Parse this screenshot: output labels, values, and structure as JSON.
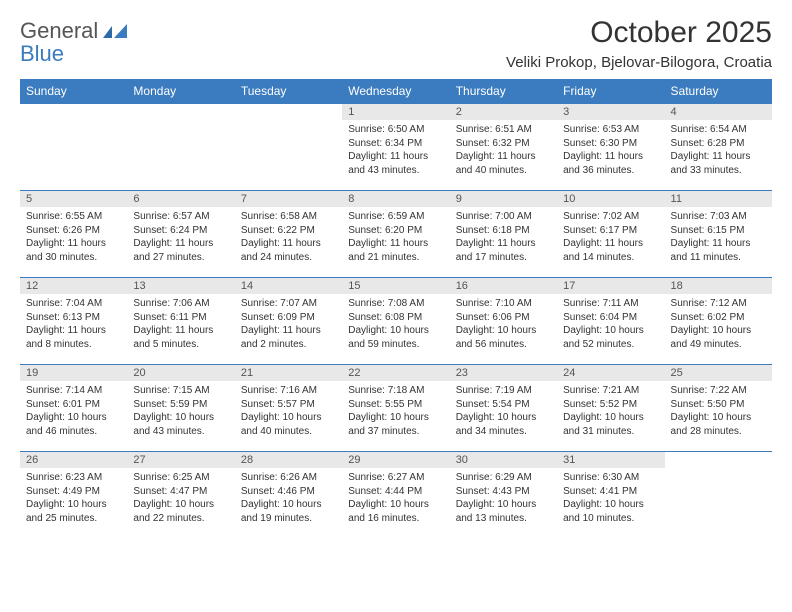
{
  "brand": {
    "part1": "General",
    "part2": "Blue"
  },
  "title": "October 2025",
  "location": "Veliki Prokop, Bjelovar-Bilogora, Croatia",
  "colors": {
    "header_bg": "#3b7bbf",
    "header_fg": "#ffffff",
    "daynum_bg": "#e8e8e8",
    "text": "#333333",
    "rule": "#3b7bbf"
  },
  "weekdays": [
    "Sunday",
    "Monday",
    "Tuesday",
    "Wednesday",
    "Thursday",
    "Friday",
    "Saturday"
  ],
  "weeks": [
    [
      null,
      null,
      null,
      {
        "d": "1",
        "sr": "6:50 AM",
        "ss": "6:34 PM",
        "dl": "11 hours and 43 minutes."
      },
      {
        "d": "2",
        "sr": "6:51 AM",
        "ss": "6:32 PM",
        "dl": "11 hours and 40 minutes."
      },
      {
        "d": "3",
        "sr": "6:53 AM",
        "ss": "6:30 PM",
        "dl": "11 hours and 36 minutes."
      },
      {
        "d": "4",
        "sr": "6:54 AM",
        "ss": "6:28 PM",
        "dl": "11 hours and 33 minutes."
      }
    ],
    [
      {
        "d": "5",
        "sr": "6:55 AM",
        "ss": "6:26 PM",
        "dl": "11 hours and 30 minutes."
      },
      {
        "d": "6",
        "sr": "6:57 AM",
        "ss": "6:24 PM",
        "dl": "11 hours and 27 minutes."
      },
      {
        "d": "7",
        "sr": "6:58 AM",
        "ss": "6:22 PM",
        "dl": "11 hours and 24 minutes."
      },
      {
        "d": "8",
        "sr": "6:59 AM",
        "ss": "6:20 PM",
        "dl": "11 hours and 21 minutes."
      },
      {
        "d": "9",
        "sr": "7:00 AM",
        "ss": "6:18 PM",
        "dl": "11 hours and 17 minutes."
      },
      {
        "d": "10",
        "sr": "7:02 AM",
        "ss": "6:17 PM",
        "dl": "11 hours and 14 minutes."
      },
      {
        "d": "11",
        "sr": "7:03 AM",
        "ss": "6:15 PM",
        "dl": "11 hours and 11 minutes."
      }
    ],
    [
      {
        "d": "12",
        "sr": "7:04 AM",
        "ss": "6:13 PM",
        "dl": "11 hours and 8 minutes."
      },
      {
        "d": "13",
        "sr": "7:06 AM",
        "ss": "6:11 PM",
        "dl": "11 hours and 5 minutes."
      },
      {
        "d": "14",
        "sr": "7:07 AM",
        "ss": "6:09 PM",
        "dl": "11 hours and 2 minutes."
      },
      {
        "d": "15",
        "sr": "7:08 AM",
        "ss": "6:08 PM",
        "dl": "10 hours and 59 minutes."
      },
      {
        "d": "16",
        "sr": "7:10 AM",
        "ss": "6:06 PM",
        "dl": "10 hours and 56 minutes."
      },
      {
        "d": "17",
        "sr": "7:11 AM",
        "ss": "6:04 PM",
        "dl": "10 hours and 52 minutes."
      },
      {
        "d": "18",
        "sr": "7:12 AM",
        "ss": "6:02 PM",
        "dl": "10 hours and 49 minutes."
      }
    ],
    [
      {
        "d": "19",
        "sr": "7:14 AM",
        "ss": "6:01 PM",
        "dl": "10 hours and 46 minutes."
      },
      {
        "d": "20",
        "sr": "7:15 AM",
        "ss": "5:59 PM",
        "dl": "10 hours and 43 minutes."
      },
      {
        "d": "21",
        "sr": "7:16 AM",
        "ss": "5:57 PM",
        "dl": "10 hours and 40 minutes."
      },
      {
        "d": "22",
        "sr": "7:18 AM",
        "ss": "5:55 PM",
        "dl": "10 hours and 37 minutes."
      },
      {
        "d": "23",
        "sr": "7:19 AM",
        "ss": "5:54 PM",
        "dl": "10 hours and 34 minutes."
      },
      {
        "d": "24",
        "sr": "7:21 AM",
        "ss": "5:52 PM",
        "dl": "10 hours and 31 minutes."
      },
      {
        "d": "25",
        "sr": "7:22 AM",
        "ss": "5:50 PM",
        "dl": "10 hours and 28 minutes."
      }
    ],
    [
      {
        "d": "26",
        "sr": "6:23 AM",
        "ss": "4:49 PM",
        "dl": "10 hours and 25 minutes."
      },
      {
        "d": "27",
        "sr": "6:25 AM",
        "ss": "4:47 PM",
        "dl": "10 hours and 22 minutes."
      },
      {
        "d": "28",
        "sr": "6:26 AM",
        "ss": "4:46 PM",
        "dl": "10 hours and 19 minutes."
      },
      {
        "d": "29",
        "sr": "6:27 AM",
        "ss": "4:44 PM",
        "dl": "10 hours and 16 minutes."
      },
      {
        "d": "30",
        "sr": "6:29 AM",
        "ss": "4:43 PM",
        "dl": "10 hours and 13 minutes."
      },
      {
        "d": "31",
        "sr": "6:30 AM",
        "ss": "4:41 PM",
        "dl": "10 hours and 10 minutes."
      },
      null
    ]
  ],
  "labels": {
    "sunrise": "Sunrise:",
    "sunset": "Sunset:",
    "daylight": "Daylight:"
  }
}
